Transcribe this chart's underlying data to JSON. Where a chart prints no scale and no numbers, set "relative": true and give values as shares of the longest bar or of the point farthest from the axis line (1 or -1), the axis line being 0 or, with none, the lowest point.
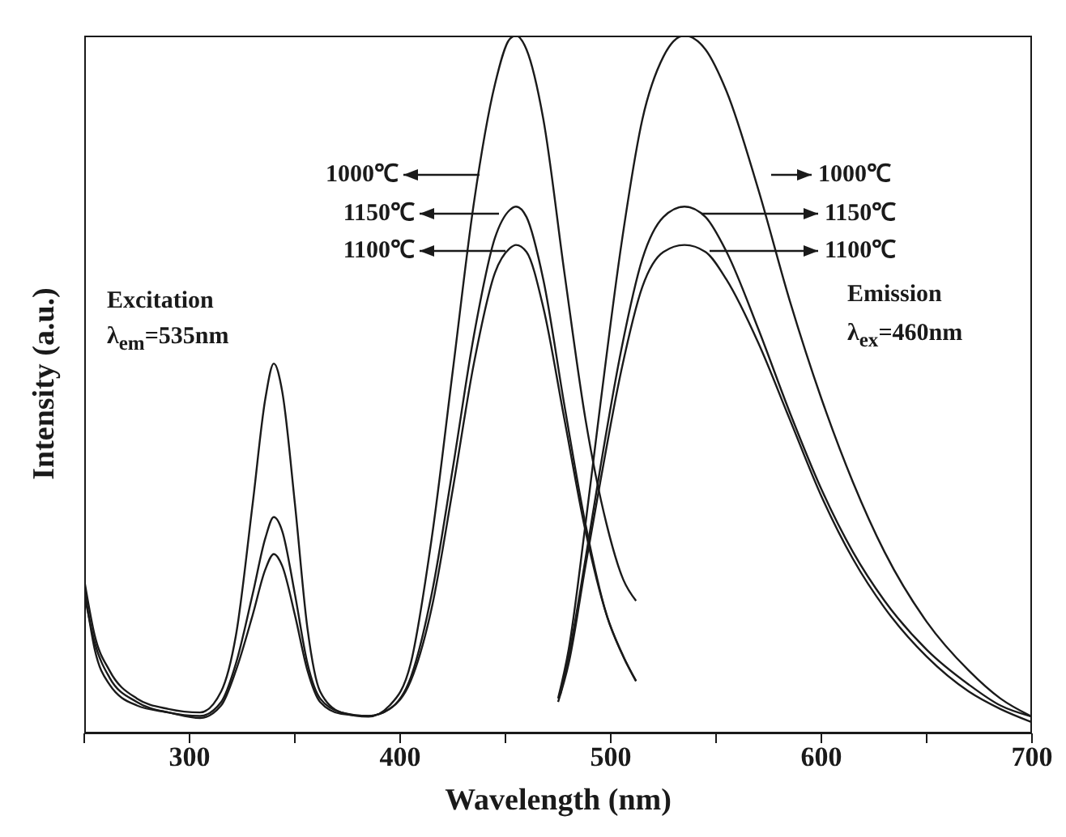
{
  "chart_data": {
    "type": "line",
    "xlabel": "Wavelength (nm)",
    "ylabel": "Intensity (a.u.)",
    "relative": true,
    "xlim": [
      250,
      700
    ],
    "xticks": [
      {
        "value": 250,
        "label": null
      },
      300,
      {
        "value": 350,
        "label": null
      },
      400,
      {
        "value": 450,
        "label": null
      },
      500,
      {
        "value": 550,
        "label": null
      },
      600,
      {
        "value": 650,
        "label": null
      },
      700
    ],
    "grid": false,
    "legend": false,
    "marker": "none",
    "line_style": "solid",
    "series": [
      {
        "color": "#1a1a1a",
        "x": [
          250,
          255,
          262,
          275,
          290,
          305,
          315,
          322,
          330,
          336,
          340,
          344,
          350,
          356,
          362,
          372,
          385,
          395,
          405,
          415,
          425,
          435,
          445,
          452,
          455,
          460,
          468,
          478,
          488,
          498,
          506,
          512
        ],
        "values": [
          0.22,
          0.14,
          0.09,
          0.05,
          0.035,
          0.03,
          0.06,
          0.14,
          0.33,
          0.48,
          0.53,
          0.49,
          0.33,
          0.15,
          0.06,
          0.03,
          0.024,
          0.04,
          0.1,
          0.28,
          0.52,
          0.76,
          0.93,
          0.995,
          1.0,
          0.98,
          0.88,
          0.66,
          0.45,
          0.3,
          0.22,
          0.19
        ]
      },
      {
        "color": "#1a1a1a",
        "x": [
          250,
          255,
          262,
          275,
          290,
          305,
          315,
          322,
          330,
          336,
          340,
          344,
          350,
          356,
          362,
          372,
          385,
          395,
          405,
          415,
          425,
          435,
          445,
          452,
          455,
          460,
          468,
          478,
          488,
          498,
          506,
          512
        ],
        "values": [
          0.2,
          0.13,
          0.08,
          0.045,
          0.03,
          0.025,
          0.045,
          0.1,
          0.2,
          0.28,
          0.31,
          0.29,
          0.2,
          0.1,
          0.05,
          0.03,
          0.025,
          0.035,
          0.08,
          0.2,
          0.38,
          0.57,
          0.71,
          0.75,
          0.755,
          0.74,
          0.65,
          0.47,
          0.3,
          0.17,
          0.11,
          0.075
        ]
      },
      {
        "color": "#1a1a1a",
        "x": [
          250,
          255,
          262,
          275,
          290,
          305,
          315,
          322,
          330,
          336,
          340,
          344,
          350,
          356,
          362,
          372,
          385,
          395,
          405,
          415,
          425,
          435,
          445,
          452,
          455,
          460,
          468,
          478,
          488,
          498,
          506,
          512
        ],
        "values": [
          0.21,
          0.12,
          0.07,
          0.04,
          0.03,
          0.022,
          0.04,
          0.09,
          0.17,
          0.235,
          0.257,
          0.24,
          0.17,
          0.09,
          0.045,
          0.028,
          0.025,
          0.035,
          0.075,
          0.18,
          0.35,
          0.53,
          0.66,
          0.695,
          0.7,
          0.69,
          0.61,
          0.45,
          0.29,
          0.17,
          0.11,
          0.075
        ]
      },
      {
        "color": "#1a1a1a",
        "x": [
          475,
          480,
          488,
          495,
          505,
          515,
          525,
          535,
          545,
          555,
          570,
          585,
          600,
          615,
          630,
          650,
          670,
          685,
          700
        ],
        "values": [
          0.05,
          0.12,
          0.3,
          0.47,
          0.7,
          0.88,
          0.97,
          1.0,
          0.98,
          0.92,
          0.78,
          0.62,
          0.48,
          0.36,
          0.26,
          0.16,
          0.09,
          0.05,
          0.024
        ]
      },
      {
        "color": "#1a1a1a",
        "x": [
          476,
          480,
          488,
          495,
          505,
          515,
          525,
          535,
          545,
          555,
          570,
          585,
          600,
          615,
          630,
          650,
          670,
          685,
          700
        ],
        "values": [
          0.055,
          0.11,
          0.25,
          0.38,
          0.55,
          0.68,
          0.74,
          0.755,
          0.74,
          0.69,
          0.58,
          0.46,
          0.35,
          0.26,
          0.19,
          0.12,
          0.07,
          0.04,
          0.024
        ]
      },
      {
        "color": "#1a1a1a",
        "x": [
          475,
          480,
          488,
          495,
          505,
          515,
          525,
          535,
          545,
          555,
          570,
          585,
          600,
          615,
          630,
          650,
          670,
          685,
          700
        ],
        "values": [
          0.045,
          0.1,
          0.24,
          0.36,
          0.52,
          0.64,
          0.69,
          0.7,
          0.69,
          0.65,
          0.56,
          0.45,
          0.34,
          0.25,
          0.18,
          0.11,
          0.06,
          0.035,
          0.016
        ]
      }
    ],
    "annotations": [
      "Excitation",
      "λ$_{em}$=535nm",
      "Emission",
      "λ$_{ex}$=460nm",
      "1000℃",
      "1150℃",
      "1100℃",
      "1000℃",
      "1150℃",
      "1100℃"
    ]
  }
}
